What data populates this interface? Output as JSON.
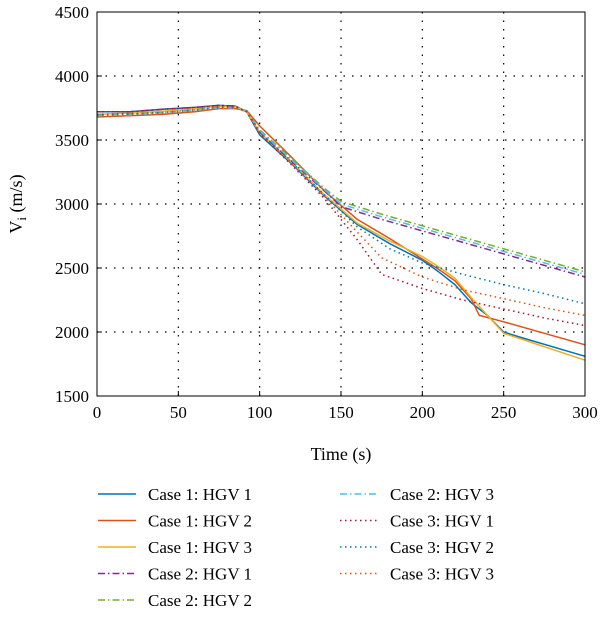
{
  "chart_data": {
    "type": "line",
    "title": "",
    "xlabel": "Time (s)",
    "ylabel_main": "V",
    "ylabel_sub": "i",
    "ylabel_unit": " (m/s)",
    "xlim": [
      0,
      300
    ],
    "ylim": [
      1500,
      4500
    ],
    "xticks": [
      0,
      50,
      100,
      150,
      200,
      250,
      300
    ],
    "yticks": [
      1500,
      2000,
      2500,
      3000,
      3500,
      4000,
      4500
    ],
    "grid": "dotted",
    "legend_position": "bottom",
    "series": [
      {
        "name": "Case 1: HGV 1",
        "color": "#0072BD",
        "style": "solid",
        "x": [
          0,
          20,
          40,
          60,
          75,
          85,
          92,
          100,
          120,
          140,
          160,
          180,
          200,
          210,
          220,
          230,
          240,
          250,
          260,
          300
        ],
        "y": [
          3720,
          3720,
          3740,
          3755,
          3770,
          3765,
          3720,
          3540,
          3310,
          3060,
          2840,
          2690,
          2560,
          2470,
          2370,
          2230,
          2130,
          2000,
          1960,
          1810
        ]
      },
      {
        "name": "Case 1: HGV 2",
        "color": "#D95319",
        "style": "solid",
        "x": [
          0,
          20,
          40,
          60,
          75,
          85,
          92,
          100,
          120,
          140,
          160,
          180,
          200,
          210,
          220,
          230,
          235,
          250,
          300
        ],
        "y": [
          3680,
          3690,
          3700,
          3720,
          3745,
          3745,
          3730,
          3610,
          3360,
          3100,
          2880,
          2730,
          2570,
          2490,
          2400,
          2260,
          2130,
          2080,
          1900
        ]
      },
      {
        "name": "Case 1: HGV 3",
        "color": "#EDB120",
        "style": "solid",
        "x": [
          0,
          20,
          40,
          60,
          75,
          85,
          92,
          100,
          120,
          140,
          160,
          180,
          200,
          210,
          220,
          230,
          240,
          250,
          300
        ],
        "y": [
          3700,
          3710,
          3725,
          3745,
          3765,
          3760,
          3720,
          3560,
          3320,
          3070,
          2850,
          2710,
          2590,
          2510,
          2420,
          2270,
          2130,
          1990,
          1780
        ]
      },
      {
        "name": "Case 2: HGV 1",
        "color": "#7E2F8E",
        "style": "dashdot",
        "x": [
          0,
          20,
          40,
          60,
          75,
          85,
          92,
          100,
          120,
          140,
          150,
          175,
          200,
          225,
          250,
          275,
          300
        ],
        "y": [
          3720,
          3720,
          3740,
          3755,
          3770,
          3765,
          3720,
          3560,
          3330,
          3100,
          2980,
          2880,
          2790,
          2700,
          2610,
          2520,
          2430
        ]
      },
      {
        "name": "Case 2: HGV 2",
        "color": "#77AC30",
        "style": "dashdot",
        "x": [
          0,
          20,
          40,
          60,
          75,
          85,
          92,
          100,
          120,
          140,
          150,
          175,
          200,
          225,
          250,
          275,
          300
        ],
        "y": [
          3700,
          3705,
          3715,
          3735,
          3755,
          3755,
          3725,
          3580,
          3350,
          3120,
          3020,
          2920,
          2830,
          2740,
          2650,
          2560,
          2470
        ]
      },
      {
        "name": "Case 2: HGV 3",
        "color": "#4DBEEE",
        "style": "dashdot",
        "x": [
          0,
          20,
          40,
          60,
          75,
          85,
          92,
          100,
          120,
          140,
          150,
          175,
          200,
          225,
          250,
          275,
          300
        ],
        "y": [
          3690,
          3695,
          3710,
          3730,
          3750,
          3750,
          3720,
          3570,
          3340,
          3110,
          3000,
          2900,
          2810,
          2720,
          2630,
          2540,
          2450
        ]
      },
      {
        "name": "Case 3: HGV 1",
        "color": "#A2142F",
        "style": "dotted",
        "x": [
          0,
          20,
          40,
          60,
          75,
          85,
          92,
          100,
          120,
          140,
          160,
          175,
          200,
          225,
          250,
          275,
          300
        ],
        "y": [
          3720,
          3720,
          3740,
          3755,
          3770,
          3765,
          3720,
          3550,
          3300,
          3040,
          2720,
          2450,
          2340,
          2250,
          2180,
          2110,
          2050
        ]
      },
      {
        "name": "Case 3: HGV 2",
        "color": "#0072BD",
        "style": "dotted",
        "x": [
          0,
          20,
          40,
          60,
          75,
          85,
          92,
          100,
          120,
          140,
          160,
          180,
          200,
          225,
          250,
          275,
          300
        ],
        "y": [
          3700,
          3705,
          3715,
          3735,
          3755,
          3755,
          3725,
          3560,
          3320,
          3070,
          2820,
          2650,
          2540,
          2450,
          2370,
          2300,
          2220
        ]
      },
      {
        "name": "Case 3: HGV 3",
        "color": "#D95319",
        "style": "dotted",
        "x": [
          0,
          20,
          40,
          60,
          75,
          85,
          92,
          100,
          120,
          140,
          160,
          175,
          200,
          225,
          250,
          275,
          300
        ],
        "y": [
          3690,
          3695,
          3710,
          3730,
          3750,
          3750,
          3720,
          3555,
          3310,
          3055,
          2780,
          2580,
          2430,
          2330,
          2260,
          2190,
          2130
        ]
      }
    ]
  }
}
